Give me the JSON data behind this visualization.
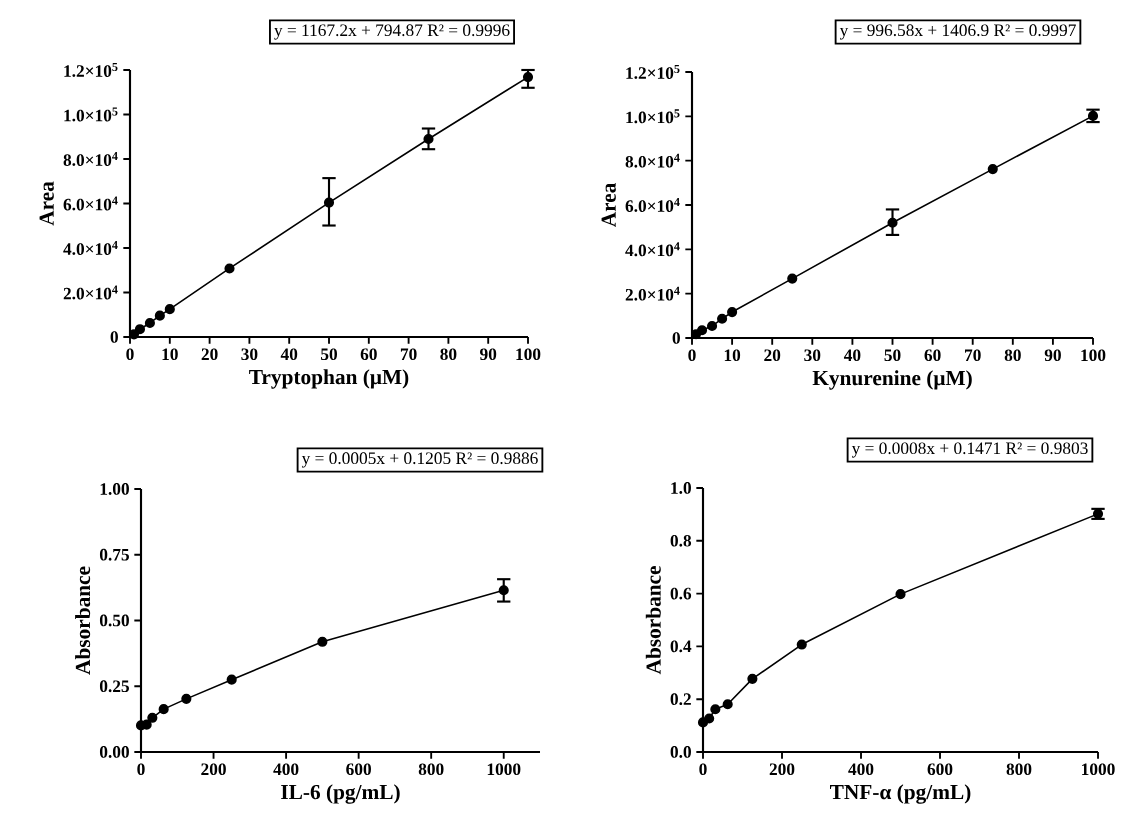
{
  "chart_data": [
    {
      "type": "line",
      "xlabel": "Tryptophan (μM)",
      "ylabel": "Area",
      "annotations": [
        "y = 1167.2x + 794.87 R² = 0.9996"
      ],
      "marker": "circle",
      "color": "#000000",
      "x": [
        1,
        2.5,
        5,
        7.5,
        10,
        25,
        50,
        75,
        100
      ],
      "values": [
        1200,
        3500,
        6300,
        9600,
        12500,
        30800,
        60400,
        89000,
        116800
      ],
      "errors": [
        null,
        null,
        null,
        null,
        null,
        null,
        [
          50100,
          71400
        ],
        [
          84400,
          93700
        ],
        [
          112000,
          120000
        ]
      ],
      "xlim": [
        0,
        100
      ],
      "xticks": [
        0,
        10,
        20,
        30,
        40,
        50,
        60,
        70,
        80,
        90,
        100
      ],
      "ylim": [
        0,
        120000
      ],
      "yticks": [
        0,
        {
          "value": 20000,
          "label": "2.0×10$^{4}$"
        },
        {
          "value": 40000,
          "label": "4.0×10$^{4}$"
        },
        {
          "value": 60000,
          "label": "6.0×10$^{4}$"
        },
        {
          "value": 80000,
          "label": "8.0×10$^{4}$"
        },
        {
          "value": 100000,
          "label": "1.0×10$^{5}$"
        },
        {
          "value": 120000,
          "label": "1.2×10$^{5}$"
        }
      ]
    },
    {
      "type": "line",
      "xlabel": "Kynurenine (μM)",
      "ylabel": "Area",
      "annotations": [
        "y = 996.58x + 1406.9 R² = 0.9997"
      ],
      "marker": "circle",
      "color": "#000000",
      "x": [
        1,
        2.5,
        5,
        7.5,
        10,
        25,
        50,
        75,
        100
      ],
      "values": [
        1700,
        3500,
        5400,
        8700,
        11700,
        26800,
        52000,
        76200,
        100200
      ],
      "errors": [
        null,
        null,
        null,
        null,
        null,
        null,
        [
          46500,
          58000
        ],
        null,
        [
          97400,
          103000
        ]
      ],
      "xlim": [
        0,
        100
      ],
      "xticks": [
        0,
        10,
        20,
        30,
        40,
        50,
        60,
        70,
        80,
        90,
        100
      ],
      "ylim": [
        0,
        120000
      ],
      "yticks": [
        0,
        {
          "value": 20000,
          "label": "2.0×10$^{4}$"
        },
        {
          "value": 40000,
          "label": "4.0×10$^{4}$"
        },
        {
          "value": 60000,
          "label": "6.0×10$^{4}$"
        },
        {
          "value": 80000,
          "label": "8.0×10$^{4}$"
        },
        {
          "value": 100000,
          "label": "1.0×10$^{5}$"
        },
        {
          "value": 120000,
          "label": "1.2×10$^{5}$"
        }
      ]
    },
    {
      "type": "line",
      "xlabel": "IL-6 (pg/mL)",
      "ylabel": "Absorbance",
      "annotations": [
        "y = 0.0005x + 0.1205 R² = 0.9886"
      ],
      "marker": "circle",
      "color": "#000000",
      "x": [
        0,
        15.6,
        31.25,
        62.5,
        125,
        250,
        500,
        1000
      ],
      "values": [
        0.101,
        0.104,
        0.13,
        0.163,
        0.202,
        0.275,
        0.419,
        0.615
      ],
      "errors": [
        null,
        null,
        null,
        null,
        null,
        null,
        null,
        [
          0.572,
          0.657
        ]
      ],
      "xlim": [
        0,
        1100
      ],
      "xticks": [
        0,
        200,
        400,
        600,
        800,
        1000
      ],
      "ylim": [
        0,
        1
      ],
      "yticks": [
        {
          "value": 0,
          "label": "0.00"
        },
        {
          "value": 0.25,
          "label": "0.25"
        },
        {
          "value": 0.5,
          "label": "0.50"
        },
        {
          "value": 0.75,
          "label": "0.75"
        },
        {
          "value": 1,
          "label": "1.00"
        }
      ]
    },
    {
      "type": "line",
      "xlabel": "TNF-α (pg/mL)",
      "ylabel": "Absorbance",
      "annotations": [
        "y = 0.0008x + 0.1471 R² = 0.9803"
      ],
      "marker": "circle",
      "color": "#000000",
      "x": [
        0,
        15.6,
        31.25,
        62.5,
        125,
        250,
        500,
        1000
      ],
      "values": [
        0.112,
        0.127,
        0.162,
        0.181,
        0.277,
        0.407,
        0.598,
        0.902
      ],
      "errors": [
        null,
        null,
        null,
        null,
        null,
        null,
        null,
        [
          0.883,
          0.921
        ]
      ],
      "xlim": [
        0,
        1000
      ],
      "xticks": [
        0,
        200,
        400,
        600,
        800,
        1000
      ],
      "ylim": [
        0,
        1
      ],
      "yticks": [
        {
          "value": 0,
          "label": "0.0"
        },
        {
          "value": 0.2,
          "label": "0.2"
        },
        {
          "value": 0.4,
          "label": "0.4"
        },
        {
          "value": 0.6,
          "label": "0.6"
        },
        {
          "value": 0.8,
          "label": "0.8"
        },
        {
          "value": 1,
          "label": "1.0"
        }
      ]
    }
  ]
}
